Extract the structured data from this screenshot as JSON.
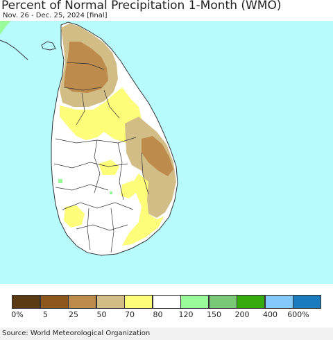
{
  "title": "Percent of Normal Precipitation 1-Month (WMO)",
  "subtitle": "Nov. 26 - Dec. 25, 2024 [final]",
  "source": "Source: World Meteorological Organization",
  "colors": {
    "ocean": "#b7fbfd",
    "land_white": "#ffffff",
    "yellow_70_80": "#fdfd7a",
    "tan_50_70": "#d2bd87",
    "brown_25_50": "#bd8b4b",
    "green_120_150": "#98fa98",
    "boundary": "#333333"
  },
  "legend": {
    "bins": [
      {
        "color": "#5a3b14"
      },
      {
        "color": "#8e581c"
      },
      {
        "color": "#bd8b4b"
      },
      {
        "color": "#d2bd87"
      },
      {
        "color": "#fdfd7a"
      },
      {
        "color": "#ffffff"
      },
      {
        "color": "#98fa98"
      },
      {
        "color": "#78c878"
      },
      {
        "color": "#35ab0d"
      },
      {
        "color": "#83c8fa"
      },
      {
        "color": "#1b7cbd"
      }
    ],
    "labels": [
      "0%",
      "5",
      "25",
      "50",
      "70",
      "80",
      "120",
      "150",
      "200",
      "400",
      "600%"
    ]
  }
}
